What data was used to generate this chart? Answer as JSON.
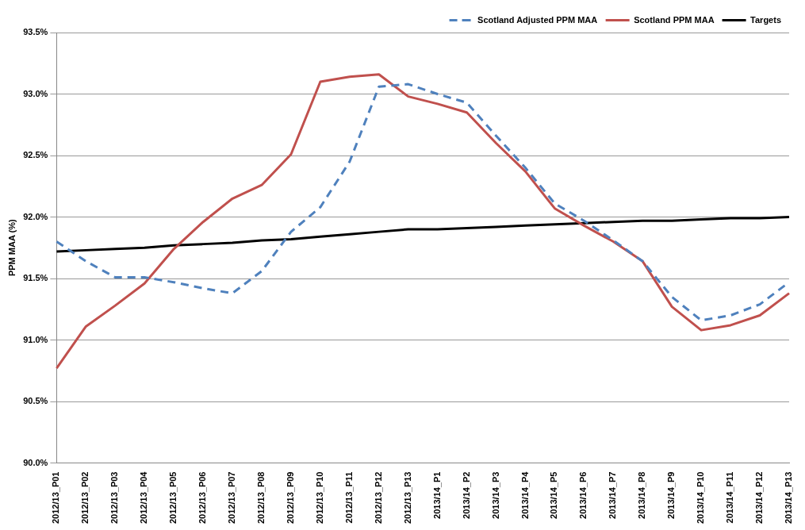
{
  "chart_data": {
    "type": "line",
    "ylabel": "PPM MAA (%)",
    "categories": [
      "2012/13_P01",
      "2012/13_P02",
      "2012/13_P03",
      "2012/13_P04",
      "2012/13_P05",
      "2012/13_P06",
      "2012/13_P07",
      "2012/13_P08",
      "2012/13_P09",
      "2012/13_P10",
      "2012/13_P11",
      "2012/13_P12",
      "2012/13_P13",
      "2013/14_P1",
      "2013/14_P2",
      "2013/14_P3",
      "2013/14_P4",
      "2013/14_P5",
      "2013/14_P6",
      "2013/14_P7",
      "2013/14_P8",
      "2013/14_P9",
      "2013/14_P10",
      "2013/14_P11",
      "2013/14_P12",
      "2013/14_P13"
    ],
    "series": [
      {
        "name": "Scotland Adjusted PPM MAA",
        "color": "#4f81bd",
        "line_style": "dashed",
        "values": [
          91.8,
          91.64,
          91.51,
          91.51,
          91.47,
          91.42,
          91.38,
          91.56,
          91.88,
          92.08,
          92.45,
          93.06,
          93.08,
          93.0,
          92.93,
          92.66,
          92.4,
          92.11,
          91.97,
          91.81,
          91.64,
          91.35,
          91.16,
          91.2,
          91.29,
          91.47
        ]
      },
      {
        "name": "Scotland PPM MAA",
        "color": "#c0504d",
        "line_style": "solid",
        "values": [
          90.77,
          91.11,
          91.28,
          91.46,
          91.74,
          91.96,
          92.15,
          92.26,
          92.51,
          93.1,
          93.14,
          93.16,
          92.98,
          92.92,
          92.85,
          92.6,
          92.37,
          92.07,
          91.93,
          91.8,
          91.64,
          91.27,
          91.08,
          91.12,
          91.2,
          91.38
        ]
      },
      {
        "name": "Targets",
        "color": "#000000",
        "line_style": "solid",
        "values": [
          91.72,
          91.73,
          91.74,
          91.75,
          91.77,
          91.78,
          91.79,
          91.81,
          91.82,
          91.84,
          91.86,
          91.88,
          91.9,
          91.9,
          91.91,
          91.92,
          91.93,
          91.94,
          91.95,
          91.96,
          91.97,
          91.97,
          91.98,
          91.99,
          91.99,
          92.0
        ]
      }
    ],
    "ylim": [
      90,
      93.5
    ],
    "yticks": [
      {
        "value": 90,
        "label": "90.0%"
      },
      {
        "value": 90.5,
        "label": "90.5%"
      },
      {
        "value": 91,
        "label": "91.0%"
      },
      {
        "value": 91.5,
        "label": "91.5%"
      },
      {
        "value": 92,
        "label": "92.0%"
      },
      {
        "value": 92.5,
        "label": "92.5%"
      },
      {
        "value": 93,
        "label": "93.0%"
      },
      {
        "value": 93.5,
        "label": "93.5%"
      }
    ],
    "grid": "y",
    "legend": "top right",
    "marker": "none"
  }
}
